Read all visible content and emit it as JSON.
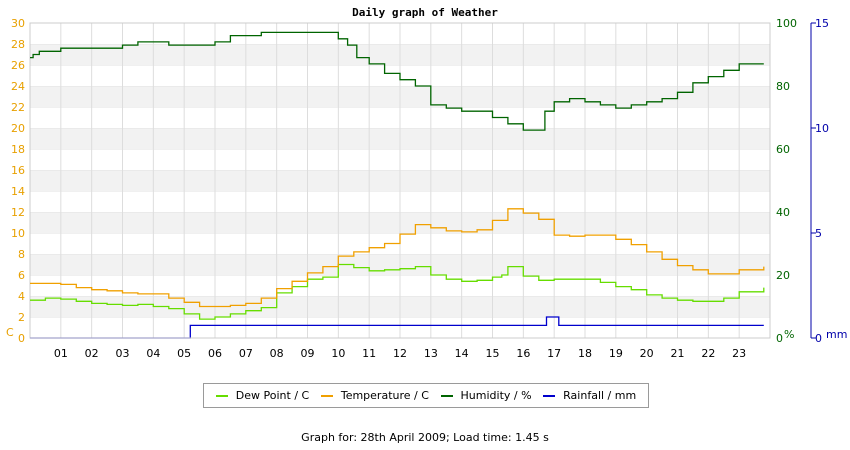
{
  "chart_data": {
    "type": "line",
    "title": "Daily graph of Weather",
    "xlabel": "",
    "x_ticks": [
      "01",
      "02",
      "03",
      "04",
      "05",
      "06",
      "07",
      "08",
      "09",
      "10",
      "11",
      "12",
      "13",
      "14",
      "15",
      "16",
      "17",
      "18",
      "19",
      "20",
      "21",
      "22",
      "23"
    ],
    "xlim": [
      0,
      24
    ],
    "left_axis": {
      "label": "C",
      "ylim": [
        0,
        30
      ],
      "ticks": [
        0,
        2,
        4,
        6,
        8,
        10,
        12,
        14,
        16,
        18,
        20,
        22,
        24,
        26,
        28,
        30
      ],
      "color": "#e8a000"
    },
    "right_axis_1": {
      "label": "%",
      "ylim": [
        0,
        100
      ],
      "ticks": [
        0,
        20,
        40,
        60,
        80,
        100
      ],
      "color": "#006400"
    },
    "right_axis_2": {
      "label": "mm",
      "ylim": [
        0,
        15
      ],
      "ticks": [
        0,
        5,
        10,
        15
      ],
      "color": "#0000aa"
    },
    "grid": true,
    "legend_position": "bottom",
    "series": [
      {
        "name": "Dew Point / C",
        "axis": "left",
        "color": "#66dd00",
        "x": [
          0,
          0.5,
          1,
          1.5,
          2,
          2.5,
          3,
          3.5,
          4,
          4.5,
          5,
          5.5,
          6,
          6.5,
          7,
          7.5,
          8,
          8.5,
          9,
          9.5,
          10,
          10.5,
          11,
          11.5,
          12,
          12.5,
          13,
          13.5,
          14,
          14.5,
          15,
          15.3,
          15.5,
          16,
          16.5,
          17,
          17.5,
          18,
          18.5,
          19,
          19.5,
          20,
          20.5,
          21,
          21.5,
          22,
          22.5,
          23,
          23.8
        ],
        "values": [
          3.6,
          3.8,
          3.7,
          3.5,
          3.3,
          3.2,
          3.1,
          3.2,
          3.0,
          2.8,
          2.3,
          1.8,
          2.0,
          2.3,
          2.6,
          2.9,
          4.3,
          4.9,
          5.6,
          5.8,
          7.0,
          6.7,
          6.4,
          6.5,
          6.6,
          6.8,
          6.0,
          5.6,
          5.4,
          5.5,
          5.8,
          6.0,
          6.8,
          5.9,
          5.5,
          5.6,
          5.6,
          5.6,
          5.3,
          4.9,
          4.6,
          4.1,
          3.8,
          3.6,
          3.5,
          3.5,
          3.8,
          4.4,
          4.8
        ]
      },
      {
        "name": "Temperature / C",
        "axis": "left",
        "color": "#f0a000",
        "x": [
          0,
          0.5,
          1,
          1.5,
          2,
          2.5,
          3,
          3.5,
          4,
          4.5,
          5,
          5.5,
          6,
          6.5,
          7,
          7.5,
          8,
          8.5,
          9,
          9.5,
          10,
          10.5,
          11,
          11.5,
          12,
          12.5,
          13,
          13.5,
          14,
          14.5,
          15,
          15.5,
          16,
          16.5,
          17,
          17.5,
          18,
          18.5,
          19,
          19.5,
          20,
          20.5,
          21,
          21.5,
          22,
          22.5,
          23,
          23.8
        ],
        "values": [
          5.2,
          5.2,
          5.1,
          4.8,
          4.6,
          4.5,
          4.3,
          4.2,
          4.2,
          3.8,
          3.4,
          3.0,
          3.0,
          3.1,
          3.3,
          3.8,
          4.7,
          5.4,
          6.2,
          6.8,
          7.8,
          8.2,
          8.6,
          9.0,
          9.9,
          10.8,
          10.5,
          10.2,
          10.1,
          10.3,
          11.2,
          12.3,
          11.9,
          11.3,
          9.8,
          9.7,
          9.8,
          9.8,
          9.4,
          8.9,
          8.2,
          7.5,
          6.9,
          6.5,
          6.1,
          6.1,
          6.5,
          6.8
        ]
      },
      {
        "name": "Humidity / %",
        "axis": "right_1",
        "color": "#006400",
        "x": [
          0,
          0.1,
          0.3,
          1,
          1.5,
          2,
          2.5,
          3,
          3.5,
          4,
          4.5,
          5,
          5.5,
          6,
          6.5,
          7,
          7.5,
          8,
          8.5,
          9,
          9.5,
          10,
          10.3,
          10.6,
          11,
          11.5,
          12,
          12.5,
          13,
          13.5,
          14,
          14.5,
          15,
          15.5,
          16,
          16.5,
          16.7,
          17,
          17.5,
          18,
          18.5,
          19,
          19.5,
          20,
          20.5,
          21,
          21.5,
          22,
          22.5,
          23,
          23.8
        ],
        "values": [
          89,
          90,
          91,
          92,
          92,
          92,
          92,
          93,
          94,
          94,
          93,
          93,
          93,
          94,
          96,
          96,
          97,
          97,
          97,
          97,
          97,
          95,
          93,
          89,
          87,
          84,
          82,
          80,
          74,
          73,
          72,
          72,
          70,
          68,
          66,
          66,
          72,
          75,
          76,
          75,
          74,
          73,
          74,
          75,
          76,
          78,
          81,
          83,
          85,
          87,
          87
        ]
      },
      {
        "name": "Rainfall / mm",
        "axis": "right_2",
        "color": "#0000cc",
        "x": [
          0,
          5.15,
          5.2,
          16.7,
          16.75,
          17.1,
          17.15,
          23.8
        ],
        "values": [
          0,
          0,
          0.6,
          0.6,
          1.0,
          1.0,
          0.6,
          0.6
        ]
      }
    ]
  },
  "footer": "Graph for: 28th April 2009; Load time: 1.45 s"
}
